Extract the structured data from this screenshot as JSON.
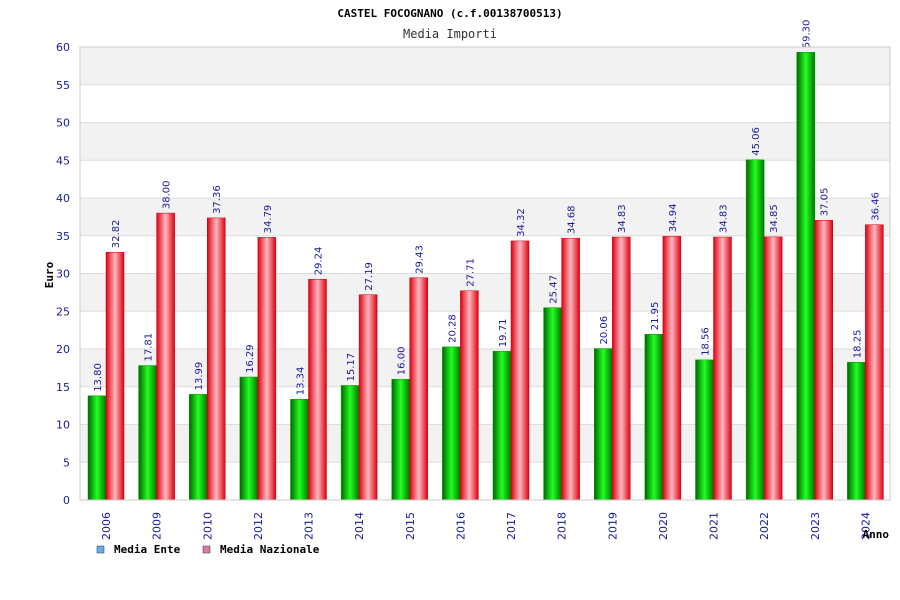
{
  "chart_data": {
    "type": "bar",
    "title": "CASTEL FOCOGNANO (c.f.00138700513)",
    "subtitle": "Media Importi",
    "xlabel": "Anno",
    "ylabel": "Euro",
    "ylim": [
      0,
      60
    ],
    "yticks": [
      0,
      5,
      10,
      15,
      20,
      25,
      30,
      35,
      40,
      45,
      50,
      55,
      60
    ],
    "categories": [
      "2006",
      "2009",
      "2010",
      "2012",
      "2013",
      "2014",
      "2015",
      "2016",
      "2017",
      "2018",
      "2019",
      "2020",
      "2021",
      "2022",
      "2023",
      "2024"
    ],
    "series": [
      {
        "name": "Media Ente",
        "color": "#00cc00",
        "legend_color": "#66aaee",
        "values": [
          13.8,
          17.81,
          13.99,
          16.29,
          13.34,
          15.17,
          16.0,
          20.28,
          19.71,
          25.47,
          20.06,
          21.95,
          18.56,
          45.06,
          59.3,
          18.25
        ],
        "labels": [
          "13.80",
          "17.81",
          "13.99",
          "16.29",
          "13.34",
          "15.17",
          "16.00",
          "20.28",
          "19.71",
          "25.47",
          "20.06",
          "21.95",
          "18.56",
          "45.06",
          "59.30",
          "18.25"
        ]
      },
      {
        "name": "Media Nazionale",
        "color": "#ee1122",
        "legend_color": "#dd77aa",
        "values": [
          32.82,
          38.0,
          37.36,
          34.79,
          29.24,
          27.19,
          29.43,
          27.71,
          34.32,
          34.68,
          34.83,
          34.94,
          34.83,
          34.85,
          37.05,
          36.46
        ],
        "labels": [
          "32.82",
          "38.00",
          "37.36",
          "34.79",
          "29.24",
          "27.19",
          "29.43",
          "27.71",
          "34.32",
          "34.68",
          "34.83",
          "34.94",
          "34.83",
          "34.85",
          "37.05",
          "36.46"
        ]
      }
    ],
    "grid": true,
    "legend": "bottom-left"
  }
}
